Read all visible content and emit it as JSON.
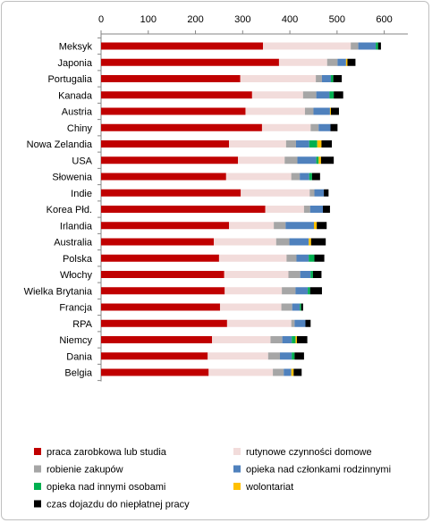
{
  "chart_data": {
    "type": "bar",
    "orientation": "horizontal",
    "stacked": true,
    "title": "",
    "xlabel": "",
    "ylabel": "",
    "xlim": [
      0,
      650
    ],
    "x_ticks": [
      0,
      100,
      200,
      300,
      400,
      500,
      600
    ],
    "x_axis_position": "top",
    "grid": false,
    "legend_position": "bottom",
    "categories": [
      "Meksyk",
      "Japonia",
      "Portugalia",
      "Kanada",
      "Austria",
      "Chiny",
      "Nowa Zelandia",
      "USA",
      "Słowenia",
      "Indie",
      "Korea Płd.",
      "Irlandia",
      "Australia",
      "Polska",
      "Włochy",
      "Wielka Brytania",
      "Francja",
      "RPA",
      "Niemcy",
      "Dania",
      "Belgia"
    ],
    "series": [
      {
        "name": "praca zarobkowa lub studia",
        "color": "#c00000",
        "values": [
          343,
          377,
          295,
          320,
          306,
          341,
          271,
          290,
          265,
          296,
          348,
          271,
          239,
          250,
          261,
          262,
          252,
          267,
          235,
          226,
          228
        ]
      },
      {
        "name": "rutynowe czynności domowe",
        "color": "#f2dcdb",
        "values": [
          186,
          102,
          160,
          108,
          126,
          103,
          121,
          99,
          138,
          146,
          82,
          95,
          132,
          143,
          136,
          121,
          130,
          136,
          124,
          128,
          136
        ]
      },
      {
        "name": "robienie zakupów",
        "color": "#a6a6a6",
        "values": [
          16,
          22,
          13,
          28,
          18,
          17,
          21,
          27,
          18,
          10,
          13,
          25,
          28,
          21,
          25,
          29,
          23,
          7,
          25,
          25,
          23
        ]
      },
      {
        "name": "opieka nad członkami rodzinnymi",
        "color": "#4f81bd",
        "values": [
          37,
          18,
          19,
          28,
          35,
          25,
          28,
          40,
          20,
          20,
          27,
          60,
          41,
          26,
          22,
          26,
          16,
          23,
          20,
          25,
          16
        ]
      },
      {
        "name": "opieka nad innymi osobami",
        "color": "#00b050",
        "values": [
          5,
          0,
          5,
          9,
          0,
          0,
          17,
          5,
          6,
          0,
          0,
          0,
          0,
          12,
          5,
          5,
          3,
          0,
          8,
          6,
          0
        ]
      },
      {
        "name": "wolontariat",
        "color": "#ffc000",
        "values": [
          0,
          3,
          0,
          0,
          2,
          0,
          9,
          5,
          0,
          0,
          0,
          6,
          5,
          0,
          0,
          0,
          0,
          0,
          3,
          0,
          5
        ]
      },
      {
        "name": "czas dojazdu do niepłatnej pracy",
        "color": "#000000",
        "values": [
          6,
          17,
          18,
          20,
          17,
          15,
          22,
          27,
          17,
          10,
          15,
          21,
          31,
          21,
          18,
          25,
          4,
          11,
          22,
          20,
          17
        ]
      }
    ]
  }
}
